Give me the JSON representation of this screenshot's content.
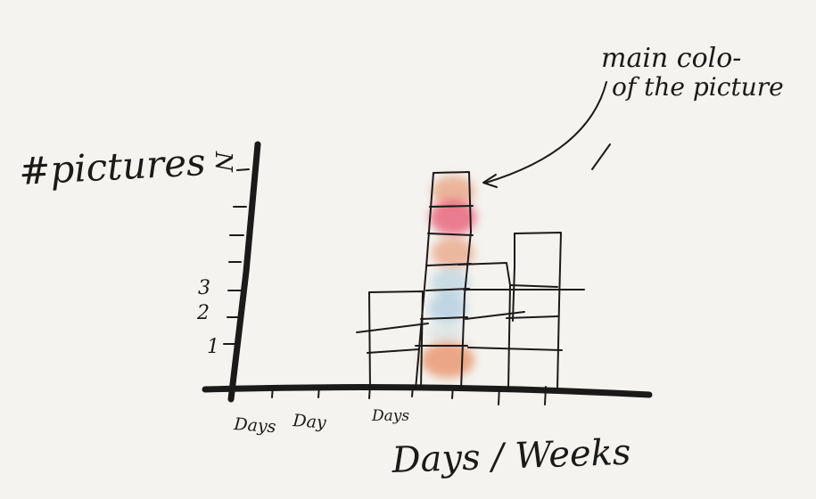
{
  "sketch": {
    "ylabel": "#pictures",
    "ylabel_letter": "N",
    "xlabel": "Days / Weeks",
    "annotation_line1": "main colo-",
    "annotation_line2": "of the picture",
    "y_ticks": [
      "3",
      "2",
      "1"
    ],
    "x_ticks": [
      "Days",
      "Day",
      "Days"
    ]
  },
  "colors": {
    "ink": "#1a1a1a",
    "paper": "#f4f3ef",
    "salmon": "#e9a07f",
    "pink": "#e8687e",
    "orange": "#e89874",
    "lightblue": "#a9c9dc",
    "blue": "#9fc3de"
  }
}
